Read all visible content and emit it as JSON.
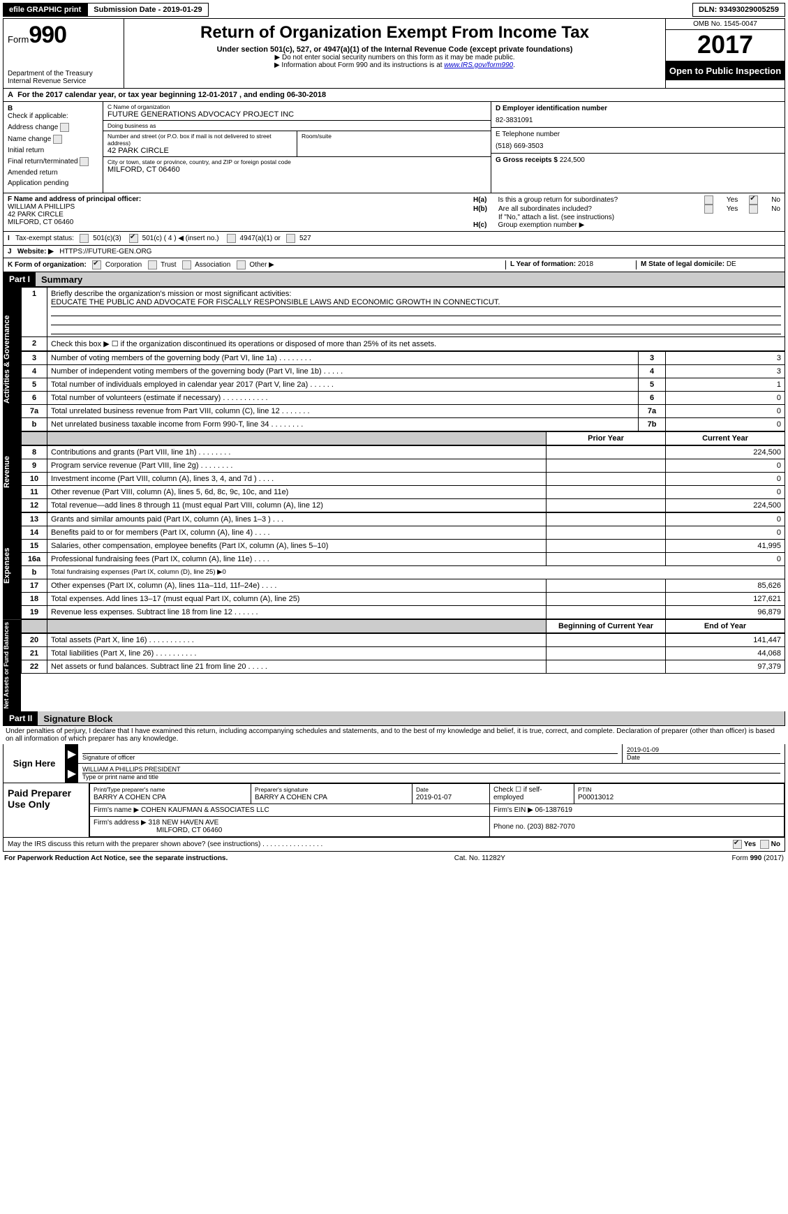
{
  "top": {
    "efile": "efile GRAPHIC print",
    "submission": "Submission Date - 2019-01-29",
    "dln": "DLN: 93493029005259"
  },
  "header": {
    "formword": "Form",
    "formnum": "990",
    "dept1": "Department of the Treasury",
    "dept2": "Internal Revenue Service",
    "title": "Return of Organization Exempt From Income Tax",
    "sub": "Under section 501(c), 527, or 4947(a)(1) of the Internal Revenue Code (except private foundations)",
    "note1": "▶ Do not enter social security numbers on this form as it may be made public.",
    "note2_pre": "▶ Information about Form 990 and its instructions is at ",
    "note2_link": "www.IRS.gov/form990",
    "omb": "OMB No. 1545-0047",
    "year": "2017",
    "open": "Open to Public Inspection"
  },
  "A": {
    "text_pre": "For the 2017 calendar year, or tax year beginning ",
    "begin": "12-01-2017",
    "mid": " , and ending ",
    "end": "06-30-2018"
  },
  "B": {
    "label": "Check if applicable:",
    "items": [
      "Address change",
      "Name change",
      "Initial return",
      "Final return/terminated",
      "Amended return",
      "Application pending"
    ]
  },
  "C": {
    "nameLabel": "C Name of organization",
    "name": "FUTURE GENERATIONS ADVOCACY PROJECT INC",
    "dbaLabel": "Doing business as",
    "dba": "",
    "streetLabel": "Number and street (or P.O. box if mail is not delivered to street address)",
    "street": "42 PARK CIRCLE",
    "roomLabel": "Room/suite",
    "cityLabel": "City or town, state or province, country, and ZIP or foreign postal code",
    "city": "MILFORD, CT  06460"
  },
  "D": {
    "label": "D Employer identification number",
    "val": "82-3831091"
  },
  "E": {
    "label": "E Telephone number",
    "val": "(518) 669-3503"
  },
  "G": {
    "label": "G Gross receipts $",
    "val": "224,500"
  },
  "F": {
    "label": "F Name and address of principal officer:",
    "name": "WILLIAM A PHILLIPS",
    "street": "42 PARK CIRCLE",
    "city": "MILFORD, CT  06460"
  },
  "H": {
    "a": "Is this a group return for subordinates?",
    "b": "Are all subordinates included?",
    "bnote": "If \"No,\" attach a list. (see instructions)",
    "c": "Group exemption number ▶",
    "yes": "Yes",
    "no": "No"
  },
  "I": {
    "label": "Tax-exempt status:",
    "opts": [
      "501(c)(3)",
      "501(c) ( 4 ) ◀ (insert no.)",
      "4947(a)(1) or",
      "527"
    ]
  },
  "J": {
    "label": "Website: ▶",
    "val": "HTTPS://FUTURE-GEN.ORG"
  },
  "K": {
    "label": "K Form of organization:",
    "opts": [
      "Corporation",
      "Trust",
      "Association",
      "Other ▶"
    ]
  },
  "L": {
    "label": "L Year of formation:",
    "val": "2018"
  },
  "M": {
    "label": "M State of legal domicile:",
    "val": "DE"
  },
  "part1": {
    "bar": "Part I",
    "title": "Summary",
    "line1": "Briefly describe the organization's mission or most significant activities:",
    "mission": "EDUCATE THE PUBLIC AND ADVOCATE FOR FISCALLY RESPONSIBLE LAWS AND ECONOMIC GROWTH IN CONNECTICUT.",
    "line2": "Check this box ▶ ☐ if the organization discontinued its operations or disposed of more than 25% of its net assets.",
    "sideA": "Activities & Governance",
    "sideR": "Revenue",
    "sideE": "Expenses",
    "sideN": "Net Assets or Fund Balances",
    "hdrPrior": "Prior Year",
    "hdrCurr": "Current Year",
    "hdrBeg": "Beginning of Current Year",
    "hdrEnd": "End of Year",
    "rowsA": [
      {
        "n": "3",
        "t": "Number of voting members of the governing body (Part VI, line 1a)   .    .    .    .    .    .    .    .",
        "k": "3",
        "v": "3"
      },
      {
        "n": "4",
        "t": "Number of independent voting members of the governing body (Part VI, line 1b)   .    .    .    .    .",
        "k": "4",
        "v": "3"
      },
      {
        "n": "5",
        "t": "Total number of individuals employed in calendar year 2017 (Part V, line 2a)   .    .    .    .    .    .",
        "k": "5",
        "v": "1"
      },
      {
        "n": "6",
        "t": "Total number of volunteers (estimate if necessary)   .    .    .    .    .    .    .    .    .    .    .",
        "k": "6",
        "v": "0"
      },
      {
        "n": "7a",
        "t": "Total unrelated business revenue from Part VIII, column (C), line 12   .    .    .    .    .    .    .",
        "k": "7a",
        "v": "0"
      },
      {
        "n": "b",
        "t": "Net unrelated business taxable income from Form 990-T, line 34   .    .    .    .    .    .    .    .",
        "k": "7b",
        "v": "0"
      }
    ],
    "rowsR": [
      {
        "n": "8",
        "t": "Contributions and grants (Part VIII, line 1h)   .    .    .    .    .    .    .    .",
        "p": "",
        "c": "224,500"
      },
      {
        "n": "9",
        "t": "Program service revenue (Part VIII, line 2g)   .    .    .    .    .    .    .    .",
        "p": "",
        "c": "0"
      },
      {
        "n": "10",
        "t": "Investment income (Part VIII, column (A), lines 3, 4, and 7d )   .    .    .    .",
        "p": "",
        "c": "0"
      },
      {
        "n": "11",
        "t": "Other revenue (Part VIII, column (A), lines 5, 6d, 8c, 9c, 10c, and 11e)",
        "p": "",
        "c": "0"
      },
      {
        "n": "12",
        "t": "Total revenue—add lines 8 through 11 (must equal Part VIII, column (A), line 12)",
        "p": "",
        "c": "224,500"
      }
    ],
    "rowsE": [
      {
        "n": "13",
        "t": "Grants and similar amounts paid (Part IX, column (A), lines 1–3 )   .    .    .",
        "p": "",
        "c": "0"
      },
      {
        "n": "14",
        "t": "Benefits paid to or for members (Part IX, column (A), line 4)   .    .    .    .",
        "p": "",
        "c": "0"
      },
      {
        "n": "15",
        "t": "Salaries, other compensation, employee benefits (Part IX, column (A), lines 5–10)",
        "p": "",
        "c": "41,995"
      },
      {
        "n": "16a",
        "t": "Professional fundraising fees (Part IX, column (A), line 11e)   .    .    .    .",
        "p": "",
        "c": "0"
      },
      {
        "n": "b",
        "t": "Total fundraising expenses (Part IX, column (D), line 25) ▶0",
        "p": null,
        "c": null
      },
      {
        "n": "17",
        "t": "Other expenses (Part IX, column (A), lines 11a–11d, 11f–24e)   .    .    .    .",
        "p": "",
        "c": "85,626"
      },
      {
        "n": "18",
        "t": "Total expenses. Add lines 13–17 (must equal Part IX, column (A), line 25)",
        "p": "",
        "c": "127,621"
      },
      {
        "n": "19",
        "t": "Revenue less expenses. Subtract line 18 from line 12   .    .    .    .    .    .",
        "p": "",
        "c": "96,879"
      }
    ],
    "rowsN": [
      {
        "n": "20",
        "t": "Total assets (Part X, line 16)   .    .    .    .    .    .    .    .    .    .    .",
        "p": "",
        "c": "141,447"
      },
      {
        "n": "21",
        "t": "Total liabilities (Part X, line 26)   .    .    .    .    .    .    .    .    .    .",
        "p": "",
        "c": "44,068"
      },
      {
        "n": "22",
        "t": "Net assets or fund balances. Subtract line 21 from line 20   .    .    .    .    .",
        "p": "",
        "c": "97,379"
      }
    ]
  },
  "part2": {
    "bar": "Part II",
    "title": "Signature Block",
    "decl": "Under penalties of perjury, I declare that I have examined this return, including accompanying schedules and statements, and to the best of my knowledge and belief, it is true, correct, and complete. Declaration of preparer (other than officer) is based on all information of which preparer has any knowledge.",
    "signHere": "Sign Here",
    "sigOff": "Signature of officer",
    "date": "Date",
    "dateVal": "2019-01-09",
    "nameTitle": "WILLIAM A PHILLIPS  PRESIDENT",
    "typeName": "Type or print name and title",
    "paid": "Paid Preparer Use Only",
    "prepName": "Print/Type preparer's name",
    "prepNameVal": "BARRY A COHEN CPA",
    "prepSig": "Preparer's signature",
    "prepSigVal": "BARRY A COHEN CPA",
    "prepDate": "Date",
    "prepDateVal": "2019-01-07",
    "selfEmp": "Check ☐ if self-employed",
    "ptin": "PTIN",
    "ptinVal": "P00013012",
    "firmName": "Firm's name      ▶",
    "firmNameVal": "COHEN KAUFMAN & ASSOCIATES LLC",
    "firmEin": "Firm's EIN ▶",
    "firmEinVal": "06-1387619",
    "firmAddr": "Firm's address ▶",
    "firmAddrVal": "318 NEW HAVEN AVE",
    "firmCity": "MILFORD, CT  06460",
    "phone": "Phone no.",
    "phoneVal": "(203) 882-7070",
    "discuss": "May the IRS discuss this return with the preparer shown above? (see instructions)   .    .    .    .    .    .    .    .    .    .    .    .    .    .    .    .",
    "yes": "Yes",
    "no": "No"
  },
  "footer": {
    "left": "For Paperwork Reduction Act Notice, see the separate instructions.",
    "mid": "Cat. No. 11282Y",
    "right": "Form 990 (2017)"
  }
}
